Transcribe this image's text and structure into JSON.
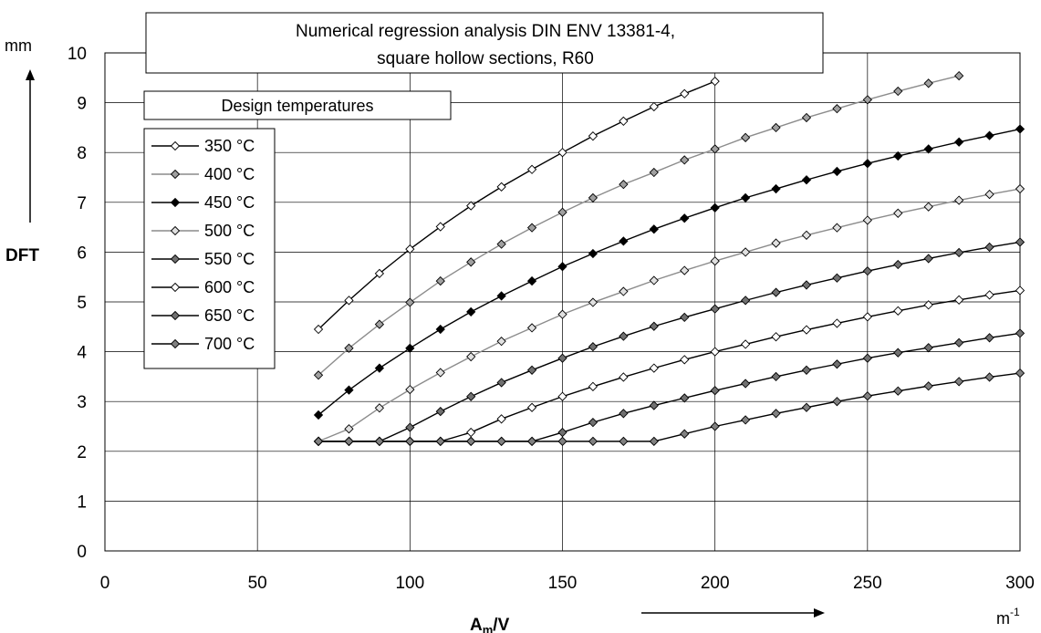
{
  "chart_data": {
    "type": "line",
    "title_lines": [
      "Numerical regression analysis DIN ENV 13381-4,",
      "square hollow sections, R60"
    ],
    "legend_title": "Design temperatures",
    "xlabel_main": "A",
    "xlabel_sub": "m",
    "xlabel_tail": "/V",
    "ylabel": "DFT",
    "y_unit": "mm",
    "x_unit_base": "m",
    "x_unit_exp": "-1",
    "xlim": [
      0,
      300
    ],
    "ylim": [
      0,
      10
    ],
    "x_ticks": [
      "0",
      "50",
      "100",
      "150",
      "200",
      "250",
      "300"
    ],
    "y_ticks": [
      "0",
      "1",
      "2",
      "3",
      "4",
      "5",
      "6",
      "7",
      "8",
      "9",
      "10"
    ],
    "grid": true,
    "legend_position": "top-left",
    "series": [
      {
        "name": "350 °C",
        "line_color": "#000000",
        "marker_fill": "#ffffff",
        "x": [
          70,
          80,
          90,
          100,
          110,
          120,
          130,
          140,
          150,
          160,
          170,
          180,
          190,
          200
        ],
        "y": [
          4.45,
          5.03,
          5.57,
          6.06,
          6.51,
          6.93,
          7.31,
          7.66,
          8.0,
          8.33,
          8.63,
          8.92,
          9.18,
          9.43
        ]
      },
      {
        "name": "400 °C",
        "line_color": "#8c8c8c",
        "marker_fill": "#a0a0a0",
        "x": [
          70,
          80,
          90,
          100,
          110,
          120,
          130,
          140,
          150,
          160,
          170,
          180,
          190,
          200,
          210,
          220,
          230,
          240,
          250,
          260,
          270,
          280
        ],
        "y": [
          3.53,
          4.07,
          4.55,
          4.99,
          5.42,
          5.8,
          6.16,
          6.49,
          6.8,
          7.09,
          7.36,
          7.6,
          7.85,
          8.07,
          8.3,
          8.5,
          8.7,
          8.88,
          9.06,
          9.23,
          9.39,
          9.54
        ]
      },
      {
        "name": "450 °C",
        "line_color": "#000000",
        "marker_fill": "#000000",
        "x": [
          70,
          80,
          90,
          100,
          110,
          120,
          130,
          140,
          150,
          160,
          170,
          180,
          190,
          200,
          210,
          220,
          230,
          240,
          250,
          260,
          270,
          280,
          290,
          300
        ],
        "y": [
          2.73,
          3.23,
          3.67,
          4.07,
          4.45,
          4.8,
          5.12,
          5.42,
          5.71,
          5.97,
          6.22,
          6.46,
          6.68,
          6.89,
          7.09,
          7.27,
          7.45,
          7.62,
          7.78,
          7.93,
          8.07,
          8.21,
          8.34,
          8.47
        ]
      },
      {
        "name": "500 °C",
        "line_color": "#8c8c8c",
        "marker_fill": "#e0e0e0",
        "x": [
          70,
          80,
          90,
          100,
          110,
          120,
          130,
          140,
          150,
          160,
          170,
          180,
          190,
          200,
          210,
          220,
          230,
          240,
          250,
          260,
          270,
          280,
          290,
          300
        ],
        "y": [
          2.2,
          2.45,
          2.87,
          3.24,
          3.58,
          3.9,
          4.21,
          4.48,
          4.75,
          4.99,
          5.21,
          5.43,
          5.63,
          5.82,
          6.0,
          6.18,
          6.34,
          6.49,
          6.64,
          6.78,
          6.91,
          7.04,
          7.16,
          7.27
        ]
      },
      {
        "name": "550 °C",
        "line_color": "#000000",
        "marker_fill": "#707070",
        "x": [
          70,
          80,
          90,
          100,
          110,
          120,
          130,
          140,
          150,
          160,
          170,
          180,
          190,
          200,
          210,
          220,
          230,
          240,
          250,
          260,
          270,
          280,
          290,
          300
        ],
        "y": [
          2.2,
          2.2,
          2.2,
          2.48,
          2.8,
          3.1,
          3.38,
          3.63,
          3.87,
          4.1,
          4.31,
          4.51,
          4.69,
          4.86,
          5.03,
          5.19,
          5.34,
          5.48,
          5.62,
          5.75,
          5.87,
          5.99,
          6.1,
          6.2
        ]
      },
      {
        "name": "600 °C",
        "line_color": "#000000",
        "marker_fill": "#ffffff",
        "x": [
          70,
          80,
          90,
          100,
          110,
          120,
          130,
          140,
          150,
          160,
          170,
          180,
          190,
          200,
          210,
          220,
          230,
          240,
          250,
          260,
          270,
          280,
          290,
          300
        ],
        "y": [
          2.2,
          2.2,
          2.2,
          2.2,
          2.2,
          2.38,
          2.65,
          2.88,
          3.1,
          3.3,
          3.49,
          3.67,
          3.84,
          4.0,
          4.15,
          4.3,
          4.44,
          4.57,
          4.7,
          4.82,
          4.94,
          5.04,
          5.14,
          5.23
        ]
      },
      {
        "name": "650 °C",
        "line_color": "#000000",
        "marker_fill": "#707070",
        "x": [
          70,
          80,
          90,
          100,
          110,
          120,
          130,
          140,
          150,
          160,
          170,
          180,
          190,
          200,
          210,
          220,
          230,
          240,
          250,
          260,
          270,
          280,
          290,
          300
        ],
        "y": [
          2.2,
          2.2,
          2.2,
          2.2,
          2.2,
          2.2,
          2.2,
          2.2,
          2.38,
          2.58,
          2.76,
          2.92,
          3.07,
          3.22,
          3.36,
          3.5,
          3.63,
          3.75,
          3.87,
          3.98,
          4.08,
          4.18,
          4.28,
          4.37
        ]
      },
      {
        "name": "700 °C",
        "line_color": "#000000",
        "marker_fill": "#808080",
        "x": [
          70,
          80,
          90,
          100,
          110,
          120,
          130,
          140,
          150,
          160,
          170,
          180,
          190,
          200,
          210,
          220,
          230,
          240,
          250,
          260,
          270,
          280,
          290,
          300
        ],
        "y": [
          2.2,
          2.2,
          2.2,
          2.2,
          2.2,
          2.2,
          2.2,
          2.2,
          2.2,
          2.2,
          2.2,
          2.2,
          2.35,
          2.5,
          2.63,
          2.76,
          2.88,
          3.0,
          3.11,
          3.21,
          3.31,
          3.4,
          3.49,
          3.57
        ]
      }
    ]
  }
}
